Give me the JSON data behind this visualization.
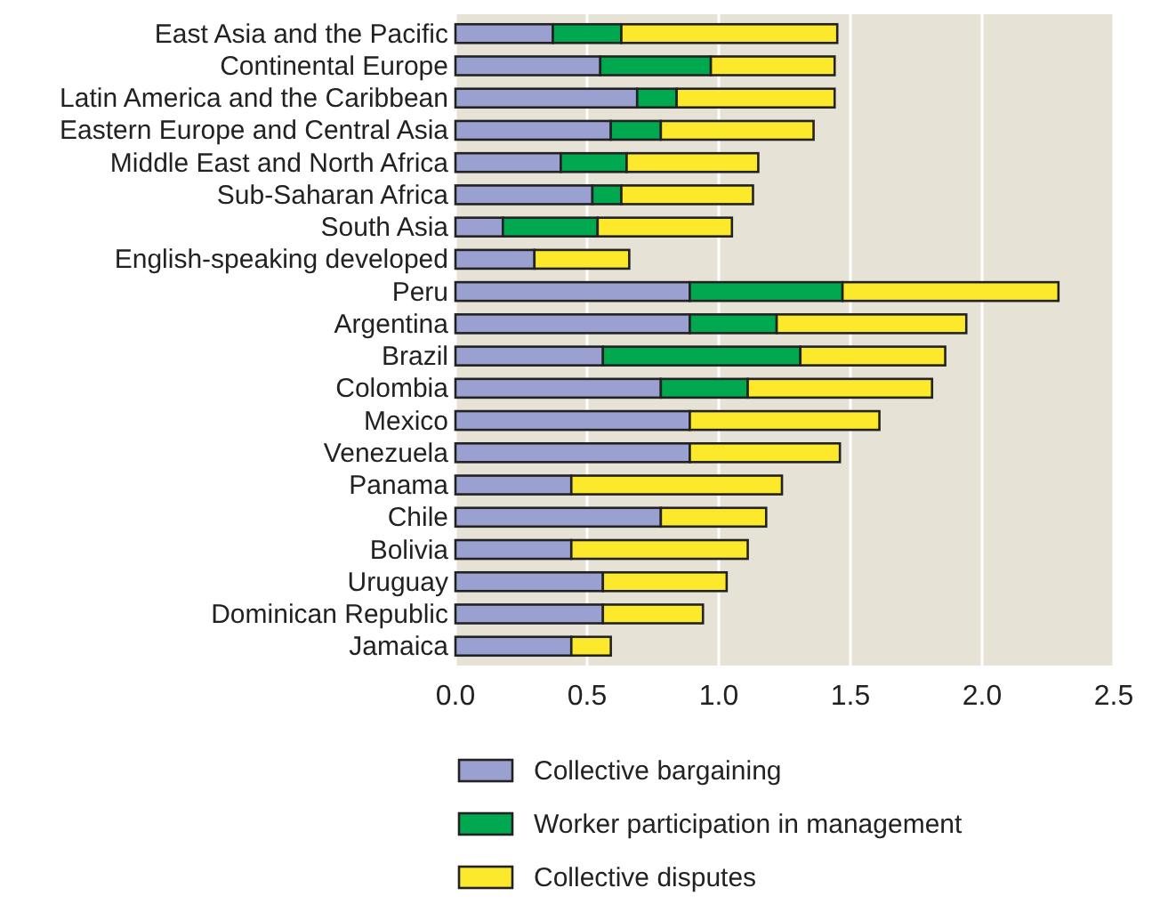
{
  "chart_data": {
    "type": "bar",
    "orientation": "horizontal",
    "stacked": true,
    "categories": [
      "East Asia and the Pacific",
      "Continental Europe",
      "Latin America and the Caribbean",
      "Eastern Europe and Central Asia",
      "Middle East and North Africa",
      "Sub-Saharan Africa",
      "South Asia",
      "English-speaking developed",
      "Peru",
      "Argentina",
      "Brazil",
      "Colombia",
      "Mexico",
      "Venezuela",
      "Panama",
      "Chile",
      "Bolivia",
      "Uruguay",
      "Dominican Republic",
      "Jamaica"
    ],
    "series": [
      {
        "name": "Collective bargaining",
        "color": "#9aa0d0",
        "values": [
          0.37,
          0.55,
          0.69,
          0.59,
          0.4,
          0.52,
          0.18,
          0.3,
          0.89,
          0.89,
          0.56,
          0.78,
          0.89,
          0.89,
          0.44,
          0.78,
          0.44,
          0.56,
          0.56,
          0.44
        ]
      },
      {
        "name": "Worker participation in management",
        "color": "#00a84f",
        "values": [
          0.26,
          0.42,
          0.15,
          0.19,
          0.25,
          0.11,
          0.36,
          null,
          0.58,
          0.33,
          0.75,
          0.33,
          null,
          null,
          null,
          null,
          null,
          null,
          null,
          null
        ]
      },
      {
        "name": "Collective disputes",
        "color": "#fde92b",
        "values": [
          0.82,
          0.47,
          0.6,
          0.58,
          0.5,
          0.5,
          0.51,
          0.36,
          0.82,
          0.72,
          0.55,
          0.7,
          0.72,
          0.57,
          0.8,
          0.4,
          0.67,
          0.47,
          0.38,
          0.15
        ]
      }
    ],
    "xlim": [
      0,
      2.5
    ],
    "xticks": [
      {
        "value": 0,
        "label": "0.0"
      },
      0.5,
      {
        "value": 1,
        "label": "1.0"
      },
      1.5,
      {
        "value": 2,
        "label": "2.0"
      },
      2.5
    ],
    "grid": "x",
    "legend": "bottom"
  }
}
